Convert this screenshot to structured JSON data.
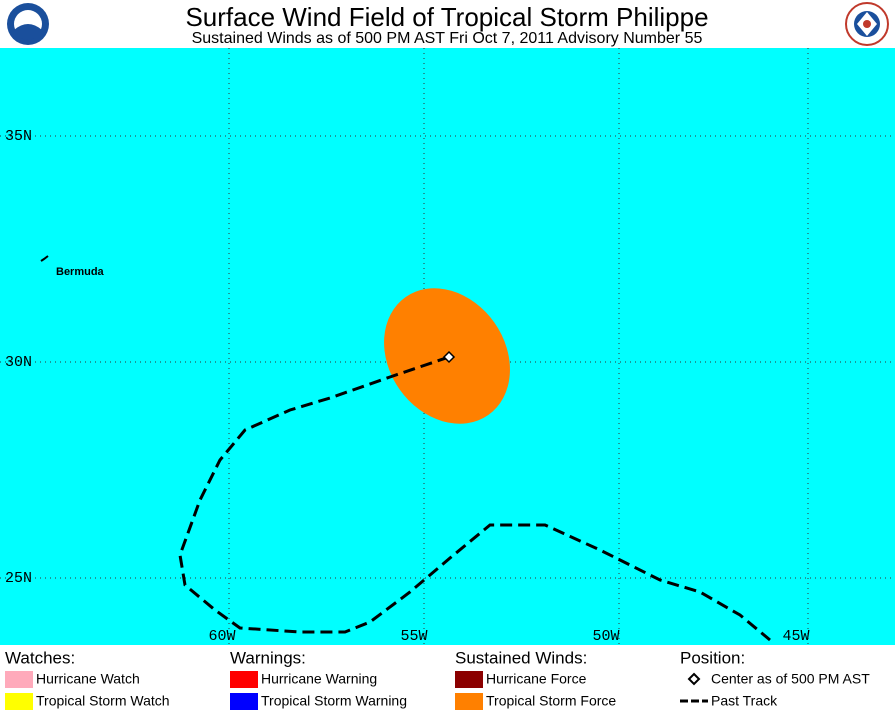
{
  "header": {
    "title": "Surface Wind Field of Tropical Storm Philippe",
    "subtitle": "Sustained Winds as of 500 PM AST Fri Oct 7, 2011     Advisory Number 55"
  },
  "map": {
    "lat_labels": [
      "35N",
      "30N",
      "25N"
    ],
    "lon_labels": [
      "60W",
      "55W",
      "50W",
      "45W"
    ],
    "places": [
      "Bermuda"
    ]
  },
  "legend": {
    "groups": [
      {
        "title": "Watches:",
        "items": [
          "Hurricane Watch",
          "Tropical Storm Watch"
        ]
      },
      {
        "title": "Warnings:",
        "items": [
          "Hurricane Warning",
          "Tropical Storm Warning"
        ]
      },
      {
        "title": "Sustained Winds:",
        "items": [
          "Hurricane Force",
          "Tropical Storm Force"
        ]
      },
      {
        "title": "Position:",
        "items": [
          "Center as of 500 PM AST",
          "Past Track"
        ]
      }
    ]
  }
}
